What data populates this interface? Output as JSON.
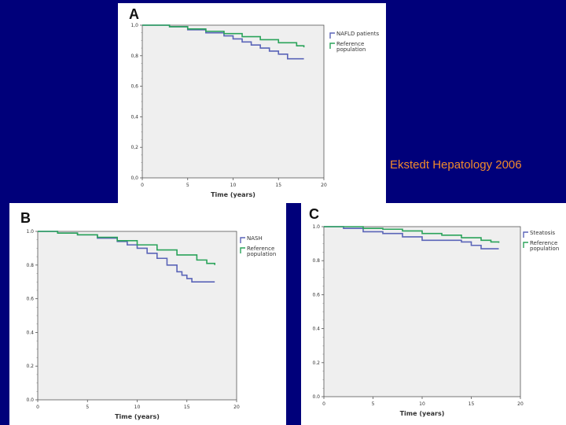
{
  "citation": "Ekstedt Hepatology 2006",
  "colors": {
    "background": "#00007a",
    "patients": "#5a64b8",
    "reference": "#2aa35a",
    "citation": "#f08a2c"
  },
  "chart_data": [
    {
      "id": "A",
      "type": "line",
      "panel_label": "A",
      "xlabel": "Time (years)",
      "ylabel": "",
      "xlim": [
        0,
        20
      ],
      "ylim": [
        0,
        1.0
      ],
      "x_ticks": [
        "0",
        "5",
        "10",
        "15",
        "20"
      ],
      "y_ticks": [
        "0,0",
        "0,2",
        "0,4",
        "0,6",
        "0,8",
        "1,0"
      ],
      "grid": false,
      "legend_position": "top-right",
      "series": [
        {
          "name": "NAFLD patients",
          "legend_lines": [
            "NAFLD patients"
          ],
          "x": [
            0,
            1.5,
            3,
            5,
            7,
            9,
            10,
            11,
            12,
            13,
            14,
            15,
            16,
            17,
            17.8
          ],
          "y": [
            1.0,
            1.0,
            0.99,
            0.97,
            0.95,
            0.93,
            0.91,
            0.89,
            0.87,
            0.85,
            0.83,
            0.81,
            0.78,
            0.78,
            0.78
          ],
          "step": true,
          "color": "#5a64b8"
        },
        {
          "name": "Reference population",
          "legend_lines": [
            "Reference",
            "population"
          ],
          "x": [
            0,
            1.5,
            3,
            5,
            7,
            9,
            11,
            13,
            15,
            17,
            17.8
          ],
          "y": [
            1.0,
            1.0,
            0.99,
            0.975,
            0.96,
            0.945,
            0.925,
            0.905,
            0.885,
            0.865,
            0.855
          ],
          "step": true,
          "color": "#2aa35a"
        }
      ]
    },
    {
      "id": "B",
      "type": "line",
      "panel_label": "B",
      "xlabel": "Time (years)",
      "ylabel": "",
      "xlim": [
        0,
        20
      ],
      "ylim": [
        0,
        1.0
      ],
      "x_ticks": [
        "0",
        "5",
        "10",
        "15",
        "20"
      ],
      "y_ticks": [
        "0.0",
        "0.2",
        "0.4",
        "0.6",
        "0.8",
        "1.0"
      ],
      "grid": false,
      "legend_position": "top-right",
      "series": [
        {
          "name": "NASH",
          "legend_lines": [
            "NASH"
          ],
          "x": [
            0,
            2,
            4,
            6,
            8,
            9,
            10,
            11,
            12,
            13,
            14,
            14.5,
            15,
            15.5,
            16,
            17,
            17.8
          ],
          "y": [
            1.0,
            0.99,
            0.98,
            0.96,
            0.94,
            0.92,
            0.9,
            0.87,
            0.84,
            0.8,
            0.76,
            0.74,
            0.72,
            0.7,
            0.7,
            0.7,
            0.7
          ],
          "step": true,
          "color": "#5a64b8"
        },
        {
          "name": "Reference population",
          "legend_lines": [
            "Reference",
            "population"
          ],
          "x": [
            0,
            2,
            4,
            6,
            8,
            10,
            12,
            14,
            16,
            17,
            17.8
          ],
          "y": [
            1.0,
            0.99,
            0.98,
            0.965,
            0.945,
            0.92,
            0.89,
            0.86,
            0.83,
            0.81,
            0.8
          ],
          "step": true,
          "color": "#2aa35a"
        }
      ]
    },
    {
      "id": "C",
      "type": "line",
      "panel_label": "C",
      "xlabel": "Time (years)",
      "ylabel": "",
      "xlim": [
        0,
        20
      ],
      "ylim": [
        0,
        1.0
      ],
      "x_ticks": [
        "0",
        "5",
        "10",
        "15",
        "20"
      ],
      "y_ticks": [
        "0.0",
        "0.2",
        "0.4",
        "0.6",
        "0.8",
        "1.0"
      ],
      "grid": false,
      "legend_position": "top-right",
      "series": [
        {
          "name": "Steatosis",
          "legend_lines": [
            "Steatosis"
          ],
          "x": [
            0,
            2,
            4,
            6,
            8,
            10,
            12,
            14,
            15,
            16,
            17,
            17.8
          ],
          "y": [
            1.0,
            0.99,
            0.97,
            0.96,
            0.94,
            0.92,
            0.92,
            0.91,
            0.89,
            0.87,
            0.87,
            0.87
          ],
          "step": true,
          "color": "#5a64b8"
        },
        {
          "name": "Reference population",
          "legend_lines": [
            "Reference",
            "population"
          ],
          "x": [
            0,
            2,
            4,
            6,
            8,
            10,
            12,
            14,
            16,
            17,
            17.8
          ],
          "y": [
            1.0,
            1.0,
            0.99,
            0.985,
            0.975,
            0.96,
            0.95,
            0.935,
            0.92,
            0.91,
            0.905
          ],
          "step": true,
          "color": "#2aa35a"
        }
      ]
    }
  ]
}
